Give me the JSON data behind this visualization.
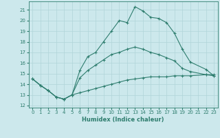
{
  "xlabel": "Humidex (Indice chaleur)",
  "xlim": [
    -0.5,
    23.5
  ],
  "ylim": [
    11.8,
    21.8
  ],
  "yticks": [
    12,
    13,
    14,
    15,
    16,
    17,
    18,
    19,
    20,
    21
  ],
  "xticks": [
    0,
    1,
    2,
    3,
    4,
    5,
    6,
    7,
    8,
    9,
    10,
    11,
    12,
    13,
    14,
    15,
    16,
    17,
    18,
    19,
    20,
    21,
    22,
    23
  ],
  "bg_color": "#cce8ec",
  "grid_color": "#b0d4d8",
  "line_color": "#2e7d6e",
  "lines": [
    {
      "x": [
        0,
        1,
        2,
        3,
        4,
        5,
        6,
        7,
        8,
        9,
        10,
        11,
        12,
        13,
        14,
        15,
        16,
        17,
        18,
        19,
        20,
        22,
        23
      ],
      "y": [
        14.5,
        13.9,
        13.4,
        12.8,
        12.6,
        13.0,
        15.3,
        16.6,
        17.0,
        18.0,
        19.0,
        20.0,
        19.8,
        21.3,
        20.9,
        20.3,
        20.2,
        19.8,
        18.8,
        17.3,
        16.1,
        15.4,
        14.8
      ]
    },
    {
      "x": [
        0,
        1,
        2,
        3,
        4,
        5,
        6,
        7,
        8,
        9,
        10,
        11,
        12,
        13,
        14,
        15,
        16,
        17,
        18,
        19,
        20,
        22,
        23
      ],
      "y": [
        14.5,
        13.9,
        13.4,
        12.8,
        12.6,
        13.0,
        14.6,
        15.3,
        15.8,
        16.3,
        16.8,
        17.0,
        17.3,
        17.5,
        17.3,
        17.0,
        16.8,
        16.5,
        16.2,
        15.5,
        15.2,
        14.9,
        14.8
      ]
    },
    {
      "x": [
        0,
        1,
        2,
        3,
        4,
        5,
        6,
        7,
        8,
        9,
        10,
        11,
        12,
        13,
        14,
        15,
        16,
        17,
        18,
        19,
        20,
        22,
        23
      ],
      "y": [
        14.5,
        13.9,
        13.4,
        12.8,
        12.6,
        13.0,
        13.2,
        13.4,
        13.6,
        13.8,
        14.0,
        14.2,
        14.4,
        14.5,
        14.6,
        14.7,
        14.7,
        14.7,
        14.8,
        14.8,
        14.8,
        14.9,
        14.9
      ]
    }
  ]
}
